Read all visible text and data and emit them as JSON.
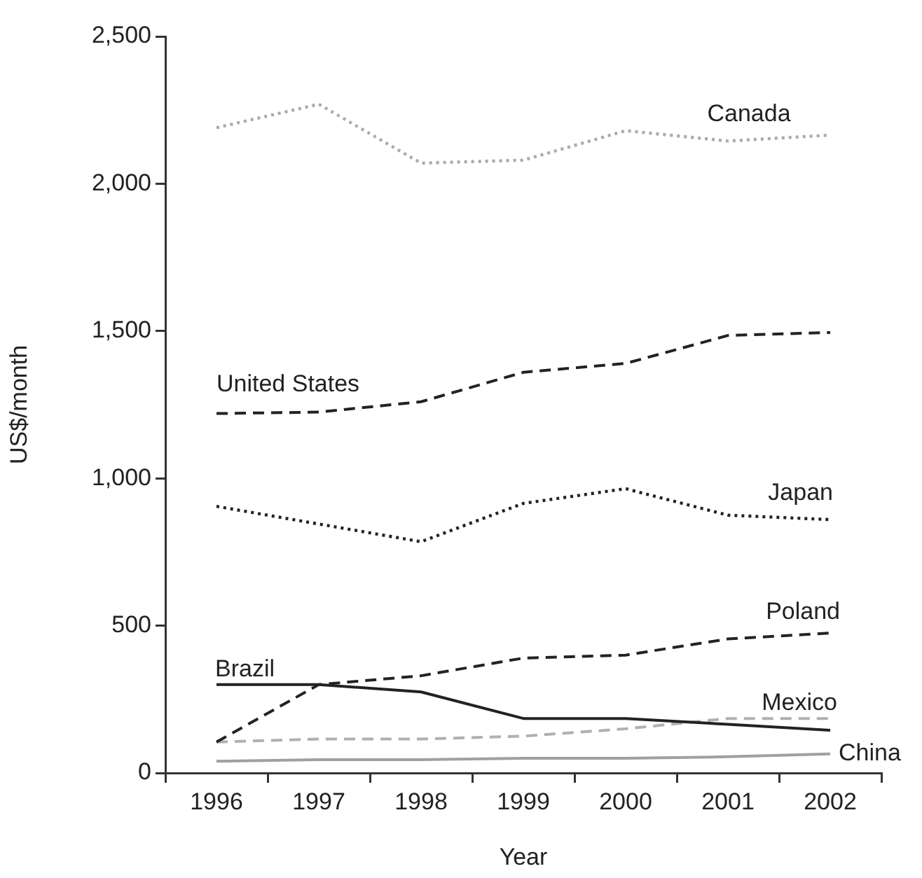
{
  "chart_data": {
    "type": "line",
    "xlabel": "Year",
    "ylabel": "US$/month",
    "categories": [
      "1996",
      "1997",
      "1998",
      "1999",
      "2000",
      "2001",
      "2002"
    ],
    "ylim": [
      0,
      2500
    ],
    "yticks": [
      {
        "value": 0,
        "label": "0"
      },
      {
        "value": 500,
        "label": "500"
      },
      {
        "value": 1000,
        "label": "1,000"
      },
      {
        "value": 1500,
        "label": "1,500"
      },
      {
        "value": 2000,
        "label": "2,000"
      },
      {
        "value": 2500,
        "label": "2,500"
      }
    ],
    "grid": false,
    "legend": false,
    "marker": "none",
    "series": [
      {
        "name": "Canada",
        "color": "#aaaaaa",
        "line_style": "dotted",
        "values": [
          2190,
          2270,
          2070,
          2080,
          2180,
          2145,
          2165
        ]
      },
      {
        "name": "United States",
        "color": "#222222",
        "line_style": "dashed",
        "values": [
          1220,
          1225,
          1260,
          1360,
          1390,
          1485,
          1495
        ]
      },
      {
        "name": "Japan",
        "color": "#222222",
        "line_style": "dotted",
        "values": [
          905,
          845,
          785,
          915,
          965,
          875,
          860
        ]
      },
      {
        "name": "Poland",
        "color": "#222222",
        "line_style": "dashed",
        "values": [
          105,
          300,
          330,
          390,
          400,
          455,
          475
        ]
      },
      {
        "name": "Brazil",
        "color": "#222222",
        "line_style": "solid",
        "values": [
          300,
          300,
          275,
          185,
          185,
          165,
          145
        ]
      },
      {
        "name": "Mexico",
        "color": "#b0b0b0",
        "line_style": "dashed",
        "values": [
          105,
          115,
          115,
          125,
          150,
          185,
          185
        ]
      },
      {
        "name": "China",
        "color": "#a0a0a0",
        "line_style": "solid",
        "values": [
          40,
          45,
          45,
          50,
          50,
          55,
          65
        ]
      }
    ]
  }
}
